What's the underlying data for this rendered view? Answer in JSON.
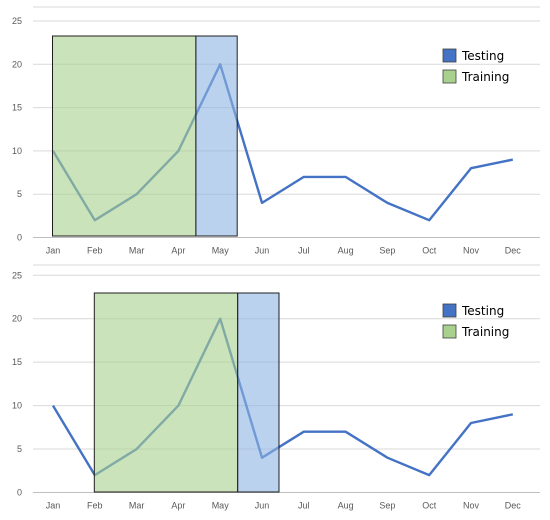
{
  "chart_data": [
    {
      "type": "line",
      "categories": [
        "Jan",
        "Feb",
        "Mar",
        "Apr",
        "May",
        "Jun",
        "Jul",
        "Aug",
        "Sep",
        "Oct",
        "Nov",
        "Dec"
      ],
      "series": [
        {
          "name": "",
          "color": "#4472c4",
          "values": [
            10,
            2,
            5,
            10,
            20,
            4,
            7,
            7,
            4,
            2,
            8,
            9
          ]
        }
      ],
      "ylim": [
        0,
        25
      ],
      "yticks": [
        0,
        5,
        10,
        15,
        20,
        25
      ],
      "grid": true,
      "legend": {
        "placement": "top-right",
        "entries": [
          {
            "label": "Testing",
            "color": "#4472c4"
          },
          {
            "label": "Training",
            "color": "#a9d18e"
          }
        ]
      },
      "windows": [
        {
          "label": "Training",
          "color": "#a9d18e",
          "start": "Jan",
          "end": "Apr"
        },
        {
          "label": "Testing",
          "color": "#8eb4e3",
          "start": "Apr",
          "end": "May"
        }
      ]
    },
    {
      "type": "line",
      "categories": [
        "Jan",
        "Feb",
        "Mar",
        "Apr",
        "May",
        "Jun",
        "Jul",
        "Aug",
        "Sep",
        "Oct",
        "Nov",
        "Dec"
      ],
      "series": [
        {
          "name": "",
          "color": "#4472c4",
          "values": [
            10,
            2,
            5,
            10,
            20,
            4,
            7,
            7,
            4,
            2,
            8,
            9
          ]
        }
      ],
      "ylim": [
        0,
        25
      ],
      "yticks": [
        0,
        5,
        10,
        15,
        20,
        25
      ],
      "grid": true,
      "legend": {
        "placement": "top-right",
        "entries": [
          {
            "label": "Testing",
            "color": "#4472c4"
          },
          {
            "label": "Training",
            "color": "#a9d18e"
          }
        ]
      },
      "windows": [
        {
          "label": "Training",
          "color": "#a9d18e",
          "start": "Feb",
          "end": "May"
        },
        {
          "label": "Testing",
          "color": "#8eb4e3",
          "start": "May",
          "end": "Jun"
        }
      ]
    }
  ]
}
